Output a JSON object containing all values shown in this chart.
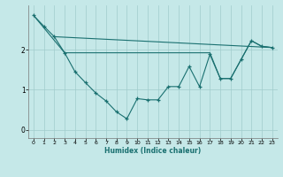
{
  "xlabel": "Humidex (Indice chaleur)",
  "background_color": "#c5e8e8",
  "grid_color": "#a0cccc",
  "line_color": "#1a7070",
  "xlim": [
    -0.5,
    23.5
  ],
  "ylim": [
    -0.2,
    3.1
  ],
  "yticks": [
    0,
    1,
    2
  ],
  "xticks": [
    0,
    1,
    2,
    3,
    4,
    5,
    6,
    7,
    8,
    9,
    10,
    11,
    12,
    13,
    14,
    15,
    16,
    17,
    18,
    19,
    20,
    21,
    22,
    23
  ],
  "line1_x": [
    0,
    1,
    2,
    3,
    4,
    5,
    6,
    7,
    8,
    9,
    10,
    11,
    12,
    13,
    14,
    15,
    16,
    17,
    18,
    19,
    20,
    21,
    22,
    23
  ],
  "line1_y": [
    2.85,
    2.58,
    2.32,
    1.92,
    1.45,
    1.18,
    0.92,
    0.72,
    0.45,
    0.28,
    0.78,
    0.75,
    0.75,
    1.08,
    1.08,
    1.58,
    1.08,
    1.88,
    1.28,
    1.28,
    1.75,
    2.22,
    2.08,
    2.05
  ],
  "line2_x": [
    2,
    23
  ],
  "line2_y": [
    2.32,
    2.05
  ],
  "line3_x": [
    0,
    3,
    5,
    10,
    14,
    17,
    18,
    19,
    20,
    21,
    22,
    23
  ],
  "line3_y": [
    2.85,
    1.92,
    1.92,
    1.92,
    1.92,
    1.92,
    1.28,
    1.28,
    1.75,
    2.22,
    2.08,
    2.05
  ]
}
